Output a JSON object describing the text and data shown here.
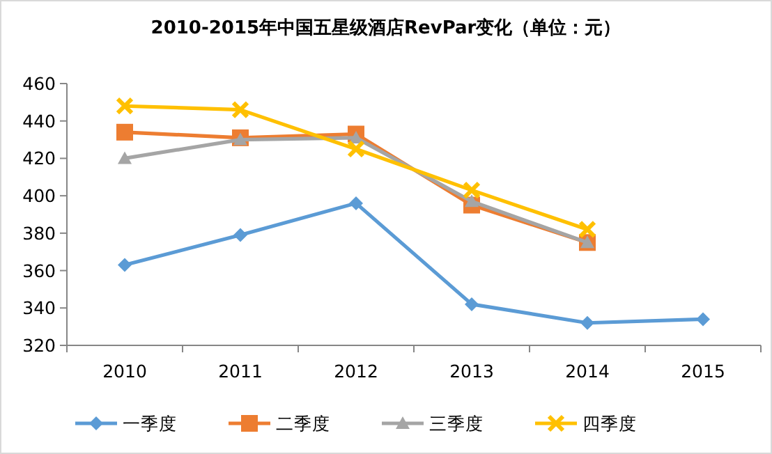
{
  "chart_data": {
    "type": "line",
    "title": "2010-2015年中国五星级酒店RevPar变化（单位：元）",
    "categories": [
      "2010",
      "2011",
      "2012",
      "2013",
      "2014",
      "2015"
    ],
    "series": [
      {
        "name": "一季度",
        "color": "#5b9bd5",
        "marker": "diamond",
        "values": [
          363,
          379,
          396,
          342,
          332,
          334
        ]
      },
      {
        "name": "二季度",
        "color": "#ed7d31",
        "marker": "square",
        "values": [
          434,
          431,
          433,
          395,
          375,
          null
        ]
      },
      {
        "name": "三季度",
        "color": "#a5a5a5",
        "marker": "triangle",
        "values": [
          420,
          430,
          431,
          397,
          375,
          null
        ]
      },
      {
        "name": "四季度",
        "color": "#ffc000",
        "marker": "cross",
        "values": [
          448,
          446,
          425,
          403,
          382,
          null
        ]
      }
    ],
    "ylim": [
      320,
      460
    ],
    "yticks": [
      320,
      340,
      360,
      380,
      400,
      420,
      440,
      460
    ],
    "grid": false,
    "legend": "bottom",
    "line_style": "solid"
  }
}
